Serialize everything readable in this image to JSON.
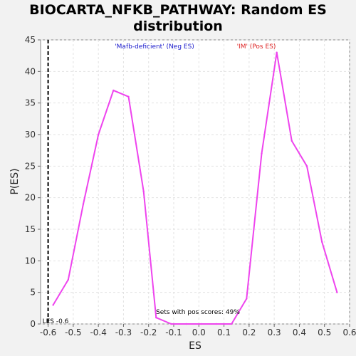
{
  "chart_data": {
    "type": "line",
    "title_line1": "BIOCARTA_NFKB_PATHWAY: Random ES",
    "title_line2": "distribution",
    "xlabel": "ES",
    "ylabel": "P(ES)",
    "xlim": [
      -0.63,
      0.6
    ],
    "ylim": [
      0,
      45
    ],
    "xticks": [
      -0.6,
      -0.5,
      -0.4,
      -0.3,
      -0.2,
      -0.1,
      0.0,
      0.1,
      0.2,
      0.3,
      0.4,
      0.5,
      0.6
    ],
    "xtick_labels": [
      "-0.6",
      "-0.5",
      "-0.4",
      "-0.3",
      "-0.2",
      "-0.1",
      "0.0",
      "0.1",
      "0.2",
      "0.3",
      "0.4",
      "0.5",
      "0.6"
    ],
    "yticks": [
      0,
      5,
      10,
      15,
      20,
      25,
      30,
      35,
      40,
      45
    ],
    "ytick_labels": [
      "0",
      "5",
      "10",
      "15",
      "20",
      "25",
      "30",
      "35",
      "40",
      "45"
    ],
    "grid": true,
    "line_color": "#ee44ee",
    "series": [
      {
        "x": [
          -0.58,
          -0.52,
          -0.46,
          -0.4,
          -0.34,
          -0.28,
          -0.22,
          -0.17,
          -0.11,
          -0.05,
          0.01,
          0.07,
          0.13,
          0.19,
          0.25,
          0.31,
          0.37,
          0.43,
          0.49,
          0.55
        ],
        "y": [
          3,
          7,
          19,
          30,
          37,
          36,
          21,
          1,
          0,
          0,
          0,
          0,
          0,
          4,
          27,
          43,
          29,
          25,
          13,
          5
        ]
      }
    ],
    "marker_line": {
      "x": -0.6,
      "label": "LES -0.6",
      "color": "#000000"
    },
    "neg_label": {
      "text": "'Mafb-deficient' (Neg ES)",
      "color": "#1a1acc"
    },
    "pos_label": {
      "text": "'IM' (Pos ES)",
      "color": "#dd2222"
    },
    "pos_scores_text": "Sets with pos scores: 49%"
  }
}
